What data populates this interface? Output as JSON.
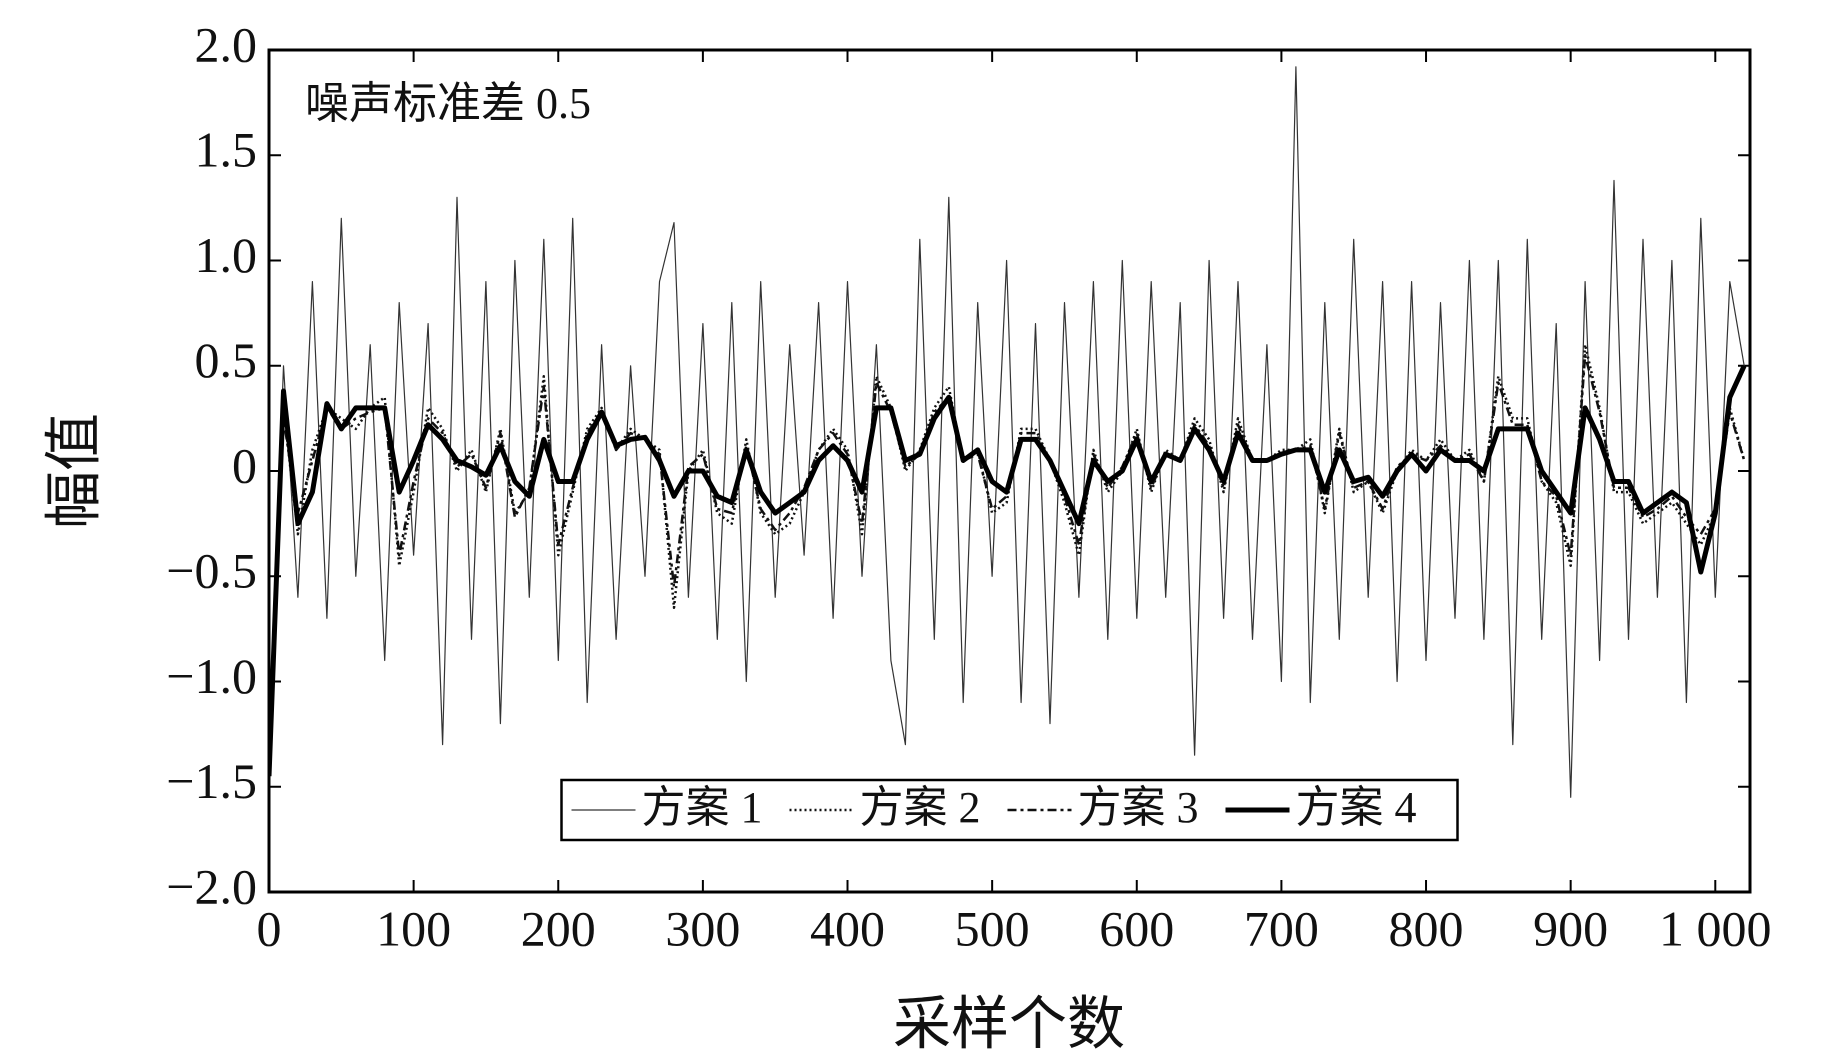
{
  "chart_data": {
    "type": "line",
    "annotation": "噪声标准差 0.5",
    "xlabel": "采样个数",
    "ylabel": "幅值",
    "x": [
      0,
      10,
      20,
      30,
      40,
      50,
      60,
      70,
      80,
      90,
      100,
      110,
      120,
      130,
      140,
      150,
      160,
      170,
      180,
      190,
      200,
      210,
      220,
      230,
      240,
      250,
      260,
      270,
      280,
      290,
      300,
      310,
      320,
      330,
      340,
      350,
      360,
      370,
      380,
      390,
      400,
      410,
      420,
      430,
      440,
      450,
      460,
      470,
      480,
      490,
      500,
      510,
      520,
      530,
      540,
      550,
      560,
      570,
      580,
      590,
      600,
      610,
      620,
      630,
      640,
      650,
      660,
      670,
      680,
      690,
      700,
      710,
      720,
      730,
      740,
      750,
      760,
      770,
      780,
      790,
      800,
      810,
      820,
      830,
      840,
      850,
      860,
      870,
      880,
      890,
      900,
      910,
      920,
      930,
      940,
      950,
      960,
      970,
      980,
      990,
      1000,
      1010,
      1020
    ],
    "series": [
      {
        "name": "方案 1",
        "color": "#333333",
        "linestyle": "solid",
        "linewidth": 1.2,
        "values": [
          -1.4,
          0.5,
          -0.6,
          0.9,
          -0.7,
          1.2,
          -0.5,
          0.6,
          -0.9,
          0.8,
          -0.4,
          0.7,
          -1.3,
          1.3,
          -0.8,
          0.9,
          -1.2,
          1.0,
          -0.6,
          1.1,
          -0.9,
          1.2,
          -1.1,
          0.6,
          -0.8,
          0.5,
          -0.5,
          0.9,
          1.18,
          -0.6,
          0.7,
          -0.8,
          0.8,
          -1.0,
          0.9,
          -0.6,
          0.6,
          -0.4,
          0.8,
          -0.7,
          0.9,
          -0.5,
          0.6,
          -0.9,
          -1.3,
          1.1,
          -0.8,
          1.3,
          -1.1,
          0.8,
          -0.5,
          1.0,
          -1.1,
          0.7,
          -1.2,
          0.8,
          -0.6,
          0.9,
          -0.8,
          1.0,
          -0.7,
          0.9,
          -0.6,
          0.8,
          -1.35,
          1.0,
          -0.7,
          0.9,
          -0.8,
          0.6,
          -1.0,
          1.92,
          -1.1,
          0.8,
          -0.8,
          1.1,
          -0.6,
          0.9,
          -1.0,
          0.9,
          -0.9,
          0.8,
          -0.7,
          1.0,
          -0.8,
          1.0,
          -1.3,
          1.1,
          -0.8,
          0.7,
          -1.55,
          0.9,
          -0.9,
          1.38,
          -0.8,
          1.1,
          -0.6,
          1.0,
          -1.1,
          1.2,
          -0.6,
          0.9,
          0.5
        ]
      },
      {
        "name": "方案 2",
        "color": "#111111",
        "linestyle": "dotted",
        "linewidth": 2.5,
        "values": [
          -1.4,
          0.3,
          -0.3,
          0.1,
          0.3,
          0.25,
          0.2,
          0.3,
          0.35,
          -0.45,
          -0.1,
          0.3,
          0.2,
          0.0,
          0.1,
          -0.1,
          0.2,
          -0.2,
          -0.1,
          0.45,
          -0.4,
          -0.1,
          0.2,
          0.3,
          0.1,
          0.2,
          0.15,
          0.1,
          -0.65,
          0.0,
          0.1,
          -0.2,
          -0.25,
          0.15,
          -0.2,
          -0.3,
          -0.25,
          -0.1,
          0.1,
          0.2,
          0.1,
          -0.3,
          0.45,
          0.3,
          0.0,
          0.1,
          0.3,
          0.4,
          0.05,
          0.1,
          -0.2,
          -0.15,
          0.2,
          0.2,
          0.05,
          -0.15,
          -0.4,
          0.1,
          -0.1,
          0.0,
          0.2,
          -0.1,
          0.1,
          0.05,
          0.25,
          0.15,
          -0.1,
          0.25,
          0.05,
          0.05,
          0.1,
          0.1,
          0.15,
          -0.2,
          0.2,
          -0.1,
          -0.05,
          -0.2,
          0.0,
          0.1,
          0.05,
          0.15,
          0.05,
          0.1,
          -0.05,
          0.45,
          0.25,
          0.25,
          -0.05,
          -0.15,
          -0.45,
          0.6,
          0.3,
          -0.1,
          -0.1,
          -0.25,
          -0.2,
          -0.15,
          -0.25,
          -0.35,
          -0.2,
          0.3,
          0.05
        ]
      },
      {
        "name": "方案 3",
        "color": "#111111",
        "linestyle": "dashdot",
        "linewidth": 2.5,
        "values": [
          -1.4,
          0.25,
          -0.2,
          0.05,
          0.3,
          0.2,
          0.25,
          0.28,
          0.3,
          -0.4,
          -0.05,
          0.25,
          0.18,
          0.02,
          0.08,
          -0.08,
          0.18,
          -0.22,
          -0.08,
          0.4,
          -0.35,
          -0.08,
          0.18,
          0.28,
          0.1,
          0.18,
          0.15,
          0.08,
          -0.55,
          0.02,
          0.08,
          -0.18,
          -0.2,
          0.12,
          -0.18,
          -0.28,
          -0.2,
          -0.08,
          0.1,
          0.18,
          0.08,
          -0.25,
          0.42,
          0.28,
          0.02,
          0.08,
          0.28,
          0.35,
          0.05,
          0.08,
          -0.18,
          -0.12,
          0.18,
          0.18,
          0.05,
          -0.12,
          -0.35,
          0.08,
          -0.08,
          0.02,
          0.18,
          -0.08,
          0.08,
          0.05,
          0.22,
          0.12,
          -0.08,
          0.22,
          0.05,
          0.05,
          0.08,
          0.1,
          0.12,
          -0.18,
          0.18,
          -0.08,
          -0.05,
          -0.18,
          0.02,
          0.08,
          0.05,
          0.12,
          0.05,
          0.08,
          -0.05,
          0.42,
          0.22,
          0.22,
          -0.05,
          -0.12,
          -0.4,
          0.55,
          0.28,
          -0.08,
          -0.08,
          -0.22,
          -0.18,
          -0.12,
          -0.22,
          -0.3,
          -0.18,
          0.28,
          0.05
        ]
      },
      {
        "name": "方案 4",
        "color": "#000000",
        "linestyle": "solid",
        "linewidth": 5,
        "values": [
          -1.45,
          0.38,
          -0.25,
          -0.1,
          0.32,
          0.2,
          0.3,
          0.3,
          0.3,
          -0.1,
          0.05,
          0.22,
          0.15,
          0.05,
          0.02,
          -0.02,
          0.12,
          -0.05,
          -0.12,
          0.15,
          -0.05,
          -0.05,
          0.15,
          0.28,
          0.12,
          0.15,
          0.16,
          0.05,
          -0.12,
          0.0,
          0.0,
          -0.12,
          -0.15,
          0.1,
          -0.1,
          -0.2,
          -0.15,
          -0.1,
          0.05,
          0.12,
          0.05,
          -0.1,
          0.3,
          0.3,
          0.05,
          0.08,
          0.25,
          0.35,
          0.05,
          0.1,
          -0.05,
          -0.1,
          0.15,
          0.15,
          0.05,
          -0.1,
          -0.25,
          0.05,
          -0.05,
          0.0,
          0.15,
          -0.05,
          0.08,
          0.05,
          0.2,
          0.1,
          -0.05,
          0.18,
          0.05,
          0.05,
          0.08,
          0.1,
          0.1,
          -0.1,
          0.1,
          -0.05,
          -0.03,
          -0.12,
          0.0,
          0.08,
          0.0,
          0.1,
          0.05,
          0.05,
          0.0,
          0.2,
          0.2,
          0.2,
          0.0,
          -0.1,
          -0.2,
          0.3,
          0.15,
          -0.05,
          -0.05,
          -0.2,
          -0.15,
          -0.1,
          -0.15,
          -0.48,
          -0.2,
          0.35,
          0.5
        ]
      }
    ],
    "xlim": [
      0,
      1024
    ],
    "xticks": [
      0,
      100,
      200,
      300,
      400,
      500,
      600,
      700,
      800,
      900,
      {
        "value": 1000,
        "label": "1 000"
      }
    ],
    "ylim": [
      -2,
      2
    ],
    "yticks": [
      {
        "value": -2,
        "label": "−2.0"
      },
      {
        "value": -1.5,
        "label": "−1.5"
      },
      {
        "value": -1,
        "label": "−1.0"
      },
      {
        "value": -0.5,
        "label": "−0.5"
      },
      0,
      0.5,
      {
        "value": 1,
        "label": "1.0"
      },
      1.5,
      {
        "value": 2,
        "label": "2.0"
      }
    ],
    "grid": false,
    "legend": "lower center"
  }
}
